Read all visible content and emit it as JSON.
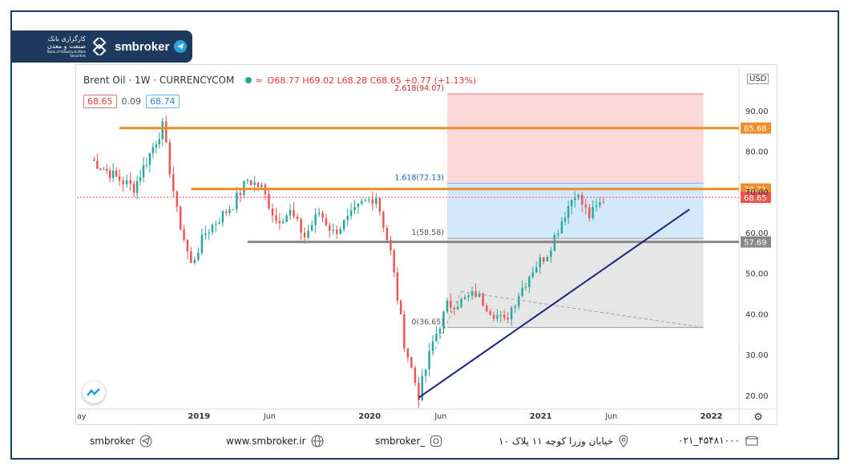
{
  "brand": {
    "logo_fa": "کارگزاری بانک صنعت و معدن",
    "logo_en": "Bank of Industry & Mine Securities",
    "name": "smbroker"
  },
  "header": {
    "symbol": "Brent Oil · 1W · CURRENCYCOM",
    "wave_icon": "≈",
    "ohlc": "O68.77 H69.02 L68.28 C68.65 +0.77 (+1.13%)"
  },
  "prices": {
    "bid": "68.65",
    "spread": "0.09",
    "ask": "68.74"
  },
  "currency": "USD",
  "colors": {
    "up": "#26a69a",
    "down": "#ef5350",
    "orange": "#f28c28",
    "trend": "#1a237e"
  },
  "chart_data": {
    "type": "candlestick",
    "instrument": "Brent Oil",
    "timeframe": "1W",
    "x_tick_labels": [
      "ay",
      "2019",
      "Jun",
      "2020",
      "Jun",
      "2021",
      "Jun",
      "2022"
    ],
    "y_tick_labels": [
      "20.00",
      "30.00",
      "40.00",
      "50.00",
      "60.00",
      "70.00",
      "80.00",
      "90.00"
    ],
    "ylim": [
      17,
      101
    ],
    "last_price": 68.65,
    "horizontal_levels": [
      {
        "label": "85.68",
        "value": 85.68,
        "color": "#f28c28"
      },
      {
        "label": "70.71",
        "value": 70.71,
        "color": "#f28c28"
      },
      {
        "label": "57.69",
        "value": 57.69,
        "color": "#888888"
      }
    ],
    "last_price_label": "68.65",
    "fib_levels": [
      {
        "label": "2.618(94.07)",
        "ratio": 2.618,
        "value": 94.07
      },
      {
        "label": "1.618(72.13)",
        "ratio": 1.618,
        "value": 72.13
      },
      {
        "label": "1(58.58)",
        "ratio": 1,
        "value": 58.58
      },
      {
        "label": "0(36.65)",
        "ratio": 0,
        "value": 36.65
      }
    ],
    "trendline": {
      "from": {
        "date": "2020-04",
        "value": 19.4
      },
      "to": {
        "date": "2021-11",
        "value": 65.7
      }
    },
    "path_high_points": [
      [
        "2018-05",
        78
      ],
      [
        "2018-07",
        73
      ],
      [
        "2018-08",
        71
      ],
      [
        "2018-10",
        86
      ],
      [
        "2018-11",
        65
      ],
      [
        "2018-12",
        52
      ],
      [
        "2019-01",
        60
      ],
      [
        "2019-03",
        67
      ],
      [
        "2019-04",
        73
      ],
      [
        "2019-05",
        71
      ],
      [
        "2019-06",
        63
      ],
      [
        "2019-07",
        65
      ],
      [
        "2019-08",
        59
      ],
      [
        "2019-09",
        65
      ],
      [
        "2019-10",
        60
      ],
      [
        "2019-11",
        63
      ],
      [
        "2019-12",
        67
      ],
      [
        "2020-01",
        69
      ],
      [
        "2020-02",
        55
      ],
      [
        "2020-03",
        33
      ],
      [
        "2020-04",
        20
      ],
      [
        "2020-05",
        33
      ],
      [
        "2020-06",
        42
      ],
      [
        "2020-07",
        43
      ],
      [
        "2020-08",
        45
      ],
      [
        "2020-09",
        41
      ],
      [
        "2020-10",
        38
      ],
      [
        "2020-11",
        45
      ],
      [
        "2020-12",
        51
      ],
      [
        "2021-01",
        55
      ],
      [
        "2021-02",
        63
      ],
      [
        "2021-03",
        70
      ],
      [
        "2021-04",
        64
      ],
      [
        "2021-05",
        68
      ],
      [
        "2021-05",
        68.65
      ]
    ]
  },
  "footer": {
    "telegram": "smbroker",
    "website": "www.smbroker.ir",
    "instagram": "smbroker_",
    "address": "خیابان وزرا کوچه ۱۱ پلاک ۱۰",
    "phone": "۰۲۱_۴۵۴۸۱۰۰۰"
  }
}
